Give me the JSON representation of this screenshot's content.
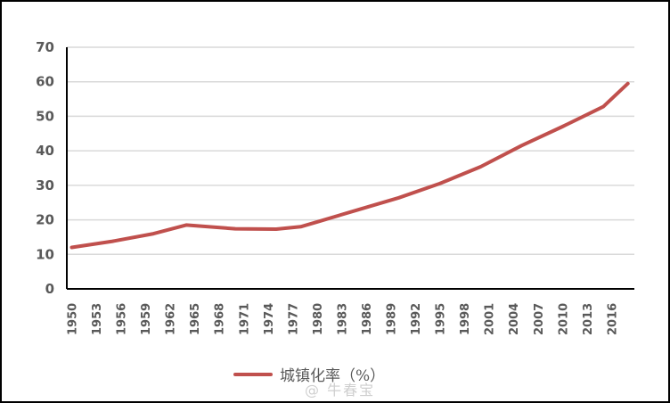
{
  "chart_data": {
    "type": "line",
    "title": "",
    "xlabel": "",
    "ylabel": "",
    "ylim": [
      0,
      70
    ],
    "yticks": [
      0,
      10,
      20,
      30,
      40,
      50,
      60,
      70
    ],
    "xtick_labels": [
      "1950",
      "1953",
      "1956",
      "1959",
      "1962",
      "1965",
      "1968",
      "1971",
      "1974",
      "1977",
      "1980",
      "1983",
      "1986",
      "1989",
      "1992",
      "1995",
      "1998",
      "2001",
      "2004",
      "2007",
      "2010",
      "2013",
      "2016"
    ],
    "grid": true,
    "legend_position": "bottom",
    "series": [
      {
        "name": "城镇化率（%）",
        "color": "#C0504D",
        "x": [
          1950,
          1955,
          1960,
          1964,
          1970,
          1975,
          1978,
          1980,
          1985,
          1990,
          1995,
          2000,
          2005,
          2010,
          2015,
          2018
        ],
        "values": [
          12.0,
          13.8,
          16.0,
          18.5,
          17.4,
          17.3,
          18.0,
          19.4,
          22.9,
          26.4,
          30.5,
          35.4,
          41.5,
          47.0,
          52.8,
          59.5
        ]
      }
    ]
  },
  "legend": {
    "label": "城镇化率（%）"
  },
  "watermark": {
    "text": "@ 牛春宝"
  }
}
